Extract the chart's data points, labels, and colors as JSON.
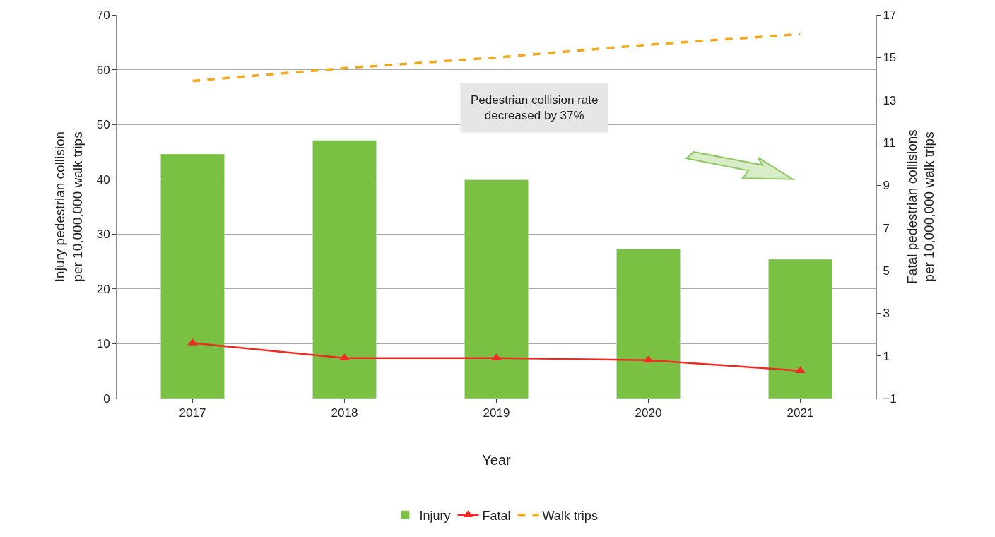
{
  "chart_data": {
    "type": "bar",
    "xlabel": "Year",
    "ylabel": "Injury pedestrian collision\nper 10,000,000 walk trips",
    "y2label": "Fatal pedestrian collisions\nper 10,000,000 walk trips",
    "categories": [
      "2017",
      "2018",
      "2019",
      "2020",
      "2021"
    ],
    "series": [
      {
        "name": "Injury",
        "color": "#7ac143",
        "values": [
          44.6,
          47.1,
          39.9,
          27.3,
          25.4
        ]
      },
      {
        "name": "Fatal",
        "type": "line",
        "axis": "y2",
        "color": "#ee2a24",
        "marker": "triangle",
        "line_style": "solid",
        "values": [
          1.6,
          0.9,
          0.9,
          0.8,
          0.3
        ]
      },
      {
        "name": "Walk trips",
        "type": "line",
        "axis": "y2",
        "color": "#f5a81c",
        "marker": "none",
        "line_style": "dashed",
        "values": [
          13.9,
          14.5,
          15.0,
          15.6,
          16.1
        ]
      }
    ],
    "ylim": [
      0,
      70
    ],
    "yticks": [
      0,
      10,
      20,
      30,
      40,
      50,
      60,
      70
    ],
    "y2lim": [
      -1,
      17
    ],
    "y2ticks": [
      -1,
      1,
      3,
      5,
      7,
      9,
      11,
      13,
      15,
      17
    ],
    "annotations": [
      "Pedestrian collision rate\ndecreased by 37%"
    ],
    "grid": "y",
    "legend": "bottom"
  }
}
